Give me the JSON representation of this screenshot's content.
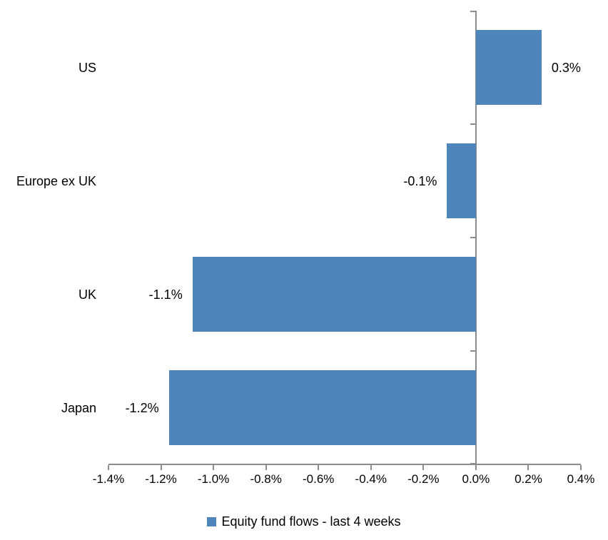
{
  "chart_data": {
    "type": "bar",
    "orientation": "horizontal",
    "title": "",
    "xlabel": "",
    "ylabel": "",
    "categories": [
      "US",
      "Europe ex UK",
      "UK",
      "Japan"
    ],
    "series": [
      {
        "name": "Equity fund flows - last 4 weeks",
        "values": [
          0.25,
          -0.11,
          -1.08,
          -1.17
        ],
        "data_labels": [
          "0.3%",
          "-0.1%",
          "-1.1%",
          "-1.2%"
        ]
      }
    ],
    "xlim": [
      -1.4,
      0.4
    ],
    "x_tick_step": 0.2,
    "x_tick_labels": [
      "-1.4%",
      "-1.2%",
      "-1.0%",
      "-0.8%",
      "-0.6%",
      "-0.4%",
      "-0.2%",
      "0.0%",
      "0.2%",
      "0.4%"
    ],
    "grid": false,
    "legend_position": "bottom",
    "colors": {
      "bar": "#4E86BC",
      "axis": "#8C8C8C",
      "text": "#000000",
      "background": "#FFFFFF"
    }
  }
}
